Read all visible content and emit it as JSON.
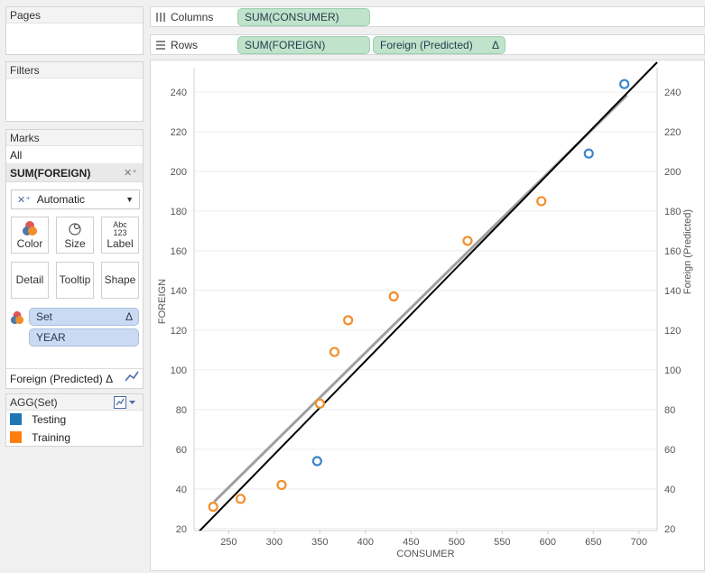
{
  "cards": {
    "pages": "Pages",
    "filters": "Filters",
    "marks": "Marks"
  },
  "marks": {
    "all": "All",
    "measure": "SUM(FOREIGN)",
    "mark_type": "Automatic",
    "buttons": {
      "color": "Color",
      "size": "Size",
      "label": "Label",
      "label_icon_top": "Abc",
      "label_icon_bottom": "123",
      "detail": "Detail",
      "tooltip": "Tooltip",
      "shape": "Shape"
    },
    "pills": {
      "set": "Set",
      "set_delta": "Δ",
      "year": "YEAR"
    },
    "predicted": "Foreign (Predicted)",
    "predicted_delta": "Δ"
  },
  "legend": {
    "title": "AGG(Set)",
    "items": [
      {
        "label": "Testing",
        "color": "#1f77b4"
      },
      {
        "label": "Training",
        "color": "#ff7f0e"
      }
    ]
  },
  "shelves": {
    "columns_label": "Columns",
    "columns_pill": "SUM(CONSUMER)",
    "rows_label": "Rows",
    "rows_pill_1": "SUM(FOREIGN)",
    "rows_pill_2": "Foreign (Predicted)",
    "rows_pill_2_delta": "Δ"
  },
  "colors": {
    "testing": "#3a86c8",
    "training": "#f28e2b",
    "fit_line": "#000000",
    "predicted_line": "#a0a0a0"
  },
  "chart_data": {
    "type": "scatter",
    "xlabel": "CONSUMER",
    "ylabel": "FOREIGN",
    "y2label": "Foreign (Predicted)",
    "xlim": [
      212,
      720
    ],
    "ylim": [
      19,
      250
    ],
    "x_ticks": [
      250,
      300,
      350,
      400,
      450,
      500,
      550,
      600,
      650,
      700
    ],
    "y_ticks": [
      20,
      40,
      60,
      80,
      100,
      120,
      140,
      160,
      180,
      200,
      220,
      240
    ],
    "series": [
      {
        "name": "Training",
        "points": [
          [
            233,
            31
          ],
          [
            263,
            35
          ],
          [
            308,
            42
          ],
          [
            350,
            83
          ],
          [
            366,
            109
          ],
          [
            381,
            125
          ],
          [
            431,
            137
          ],
          [
            512,
            165
          ],
          [
            593,
            185
          ]
        ]
      },
      {
        "name": "Testing",
        "points": [
          [
            347,
            54
          ],
          [
            645,
            209
          ],
          [
            684,
            244
          ]
        ]
      }
    ],
    "fit_line": [
      [
        212,
        16
      ],
      [
        720,
        255
      ]
    ],
    "predicted_line": [
      [
        235,
        34
      ],
      [
        686,
        238
      ]
    ]
  }
}
